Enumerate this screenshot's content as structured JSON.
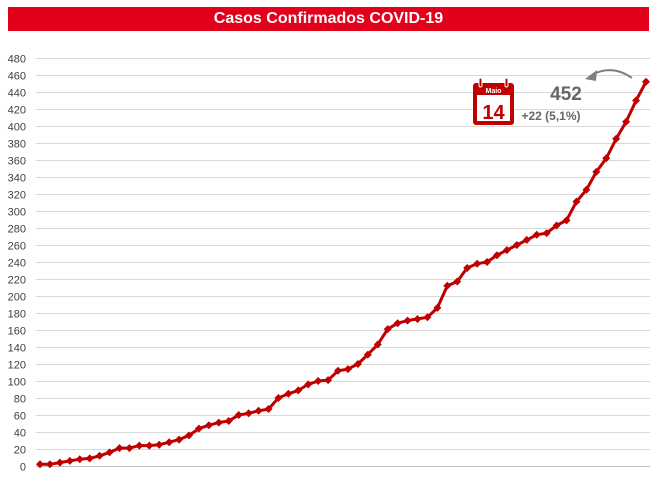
{
  "chart_data": {
    "type": "line",
    "title": "Casos Confirmados COVID-19",
    "xlabel": "",
    "ylabel": "",
    "ylim": [
      0,
      480
    ],
    "yticks": [
      0,
      20,
      40,
      60,
      80,
      100,
      120,
      140,
      160,
      180,
      200,
      220,
      240,
      260,
      280,
      300,
      320,
      340,
      360,
      380,
      400,
      420,
      440,
      460,
      480
    ],
    "grid": true,
    "legend": "none",
    "color": "#c00000",
    "series": [
      {
        "values": [
          2,
          2,
          4,
          6,
          8,
          9,
          12,
          16,
          21,
          21,
          24,
          24,
          25,
          28,
          31,
          36,
          44,
          48,
          51,
          53,
          60,
          62,
          65,
          67,
          80,
          85,
          89,
          96,
          100,
          101,
          112,
          114,
          120,
          131,
          143,
          161,
          168,
          171,
          173,
          175,
          186,
          212,
          217,
          233,
          238,
          240,
          248,
          254,
          260,
          266,
          272,
          274,
          283,
          289,
          311,
          325,
          346,
          362,
          385,
          405,
          430,
          452
        ]
      }
    ],
    "annotation": {
      "value": "452",
      "change": "+22 (5,1%)",
      "calendar_month": "Maio",
      "calendar_day": "14"
    }
  }
}
